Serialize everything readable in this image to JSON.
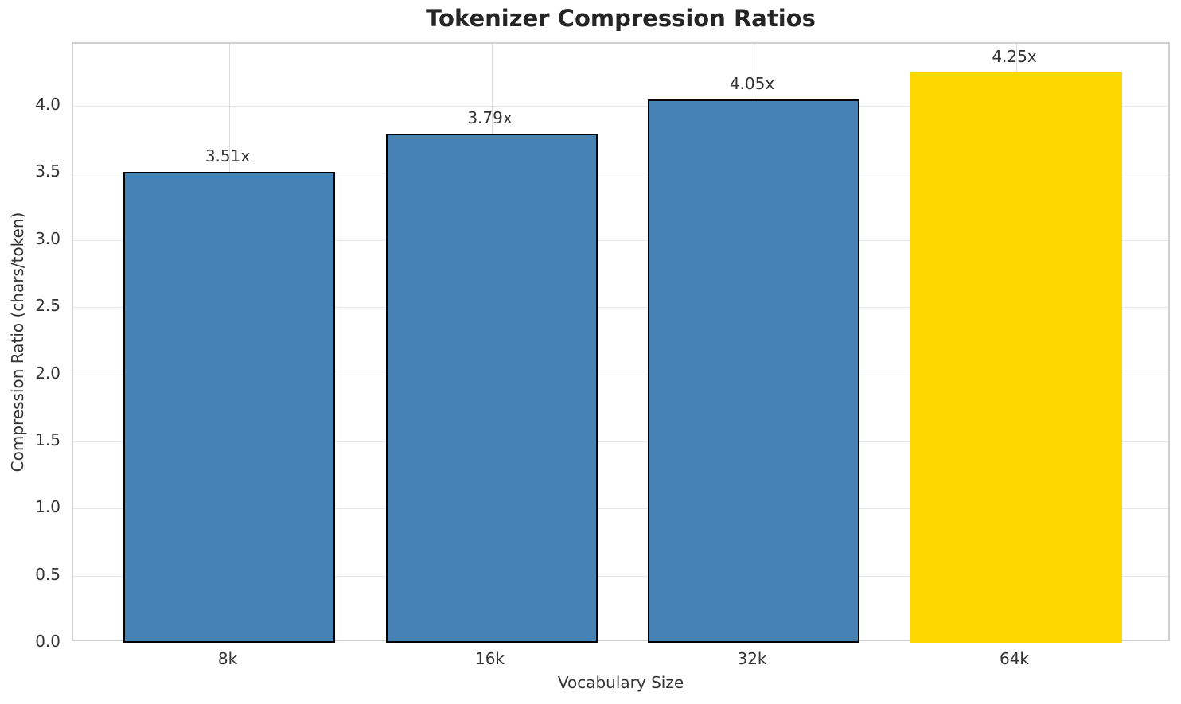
{
  "chart_data": {
    "type": "bar",
    "title": "Tokenizer Compression Ratios",
    "xlabel": "Vocabulary Size",
    "ylabel": "Compression Ratio (chars/token)",
    "categories": [
      "8k",
      "16k",
      "32k",
      "64k"
    ],
    "values": [
      3.51,
      3.79,
      4.05,
      4.25
    ],
    "bar_labels": [
      "3.51x",
      "3.79x",
      "4.05x",
      "4.25x"
    ],
    "bar_colors": [
      "#4682B4",
      "#4682B4",
      "#4682B4",
      "#FFD700"
    ],
    "bar_has_edge": [
      true,
      true,
      true,
      false
    ],
    "ytick_labels": [
      "0.0",
      "0.5",
      "1.0",
      "1.5",
      "2.0",
      "2.5",
      "3.0",
      "3.5",
      "4.0"
    ],
    "ylim": [
      0,
      4.4625
    ],
    "grid": true,
    "legend_position": "none",
    "colors": {
      "bar_default": "#4682B4",
      "bar_highlight": "#FFD700",
      "bar_edge": "#000000",
      "grid": "#e7e7e7",
      "spine": "#d0d0d0",
      "text": "#333333",
      "title": "#252525"
    }
  }
}
